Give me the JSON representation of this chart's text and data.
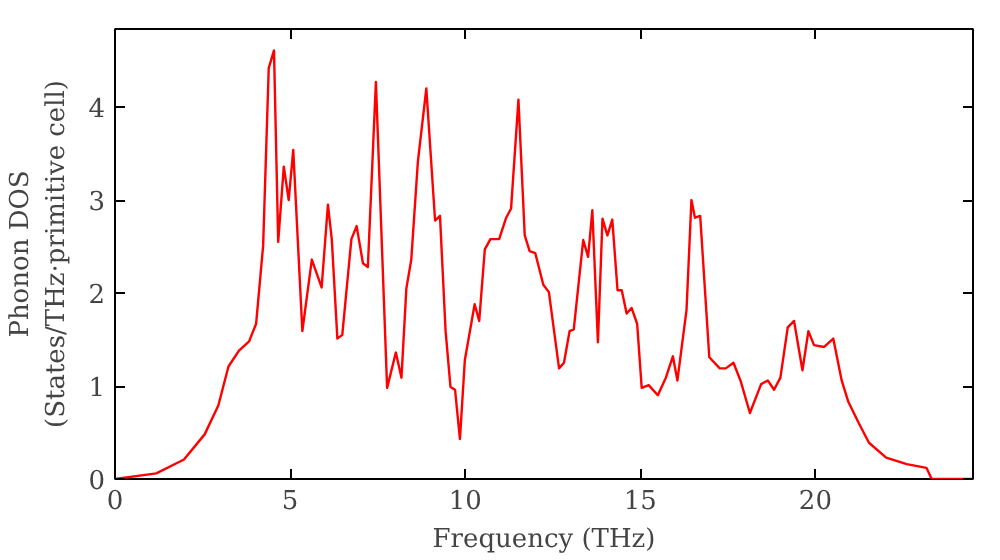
{
  "chart_data": {
    "type": "line",
    "xlabel": "Frequency (THz)",
    "ylabel": "Phonon DOS\n(States/THz·primitive cell)",
    "xlim": [
      0,
      24.5
    ],
    "ylim": [
      0,
      4.84
    ],
    "xticks": [
      0,
      5,
      10,
      15,
      20
    ],
    "yticks": [
      0,
      1,
      2,
      3,
      4
    ],
    "grid": false,
    "series": [
      {
        "color": "#ff0000",
        "x": [
          0,
          1.18,
          1.97,
          2.56,
          2.95,
          3.24,
          3.54,
          3.83,
          4.03,
          4.23,
          4.39,
          4.54,
          4.66,
          4.82,
          4.96,
          5.09,
          5.35,
          5.62,
          5.9,
          6.08,
          6.19,
          6.35,
          6.49,
          6.75,
          6.9,
          7.08,
          7.22,
          7.45,
          7.77,
          8.02,
          8.18,
          8.32,
          8.46,
          8.65,
          8.89,
          9.14,
          9.28,
          9.44,
          9.58,
          9.71,
          9.85,
          9.99,
          10.27,
          10.4,
          10.56,
          10.72,
          10.97,
          11.17,
          11.31,
          11.52,
          11.7,
          11.84,
          12.0,
          12.23,
          12.39,
          12.68,
          12.82,
          12.98,
          13.1,
          13.37,
          13.51,
          13.63,
          13.79,
          13.92,
          14.06,
          14.2,
          14.35,
          14.47,
          14.61,
          14.75,
          14.91,
          15.04,
          15.24,
          15.5,
          15.73,
          15.93,
          16.06,
          16.32,
          16.46,
          16.56,
          16.71,
          16.97,
          17.27,
          17.44,
          17.66,
          17.86,
          18.13,
          18.45,
          18.64,
          18.82,
          19.0,
          19.21,
          19.39,
          19.63,
          19.8,
          19.96,
          20.25,
          20.51,
          20.75,
          20.94,
          21.24,
          21.53,
          22.02,
          22.61,
          23.17,
          23.32,
          24.5
        ],
        "values": [
          0,
          0.06,
          0.21,
          0.48,
          0.79,
          1.21,
          1.38,
          1.48,
          1.67,
          2.51,
          4.42,
          4.61,
          2.55,
          3.36,
          3.0,
          3.54,
          1.59,
          2.36,
          2.06,
          2.95,
          2.58,
          1.51,
          1.55,
          2.58,
          2.72,
          2.32,
          2.28,
          4.27,
          0.98,
          1.36,
          1.09,
          2.05,
          2.36,
          3.42,
          4.2,
          2.78,
          2.83,
          1.59,
          0.99,
          0.96,
          0.43,
          1.28,
          1.88,
          1.7,
          2.47,
          2.58,
          2.58,
          2.81,
          2.91,
          4.08,
          2.62,
          2.45,
          2.43,
          2.09,
          2.01,
          1.19,
          1.25,
          1.59,
          1.61,
          2.57,
          2.39,
          2.89,
          1.47,
          2.8,
          2.62,
          2.79,
          2.03,
          2.03,
          1.78,
          1.84,
          1.67,
          0.98,
          1.01,
          0.9,
          1.09,
          1.32,
          1.06,
          1.82,
          3.0,
          2.81,
          2.83,
          1.31,
          1.19,
          1.19,
          1.25,
          1.06,
          0.71,
          1.02,
          1.06,
          0.96,
          1.09,
          1.63,
          1.7,
          1.17,
          1.59,
          1.44,
          1.42,
          1.51,
          1.06,
          0.83,
          0.6,
          0.39,
          0.23,
          0.16,
          0.12,
          0.0,
          0.0
        ]
      }
    ]
  }
}
